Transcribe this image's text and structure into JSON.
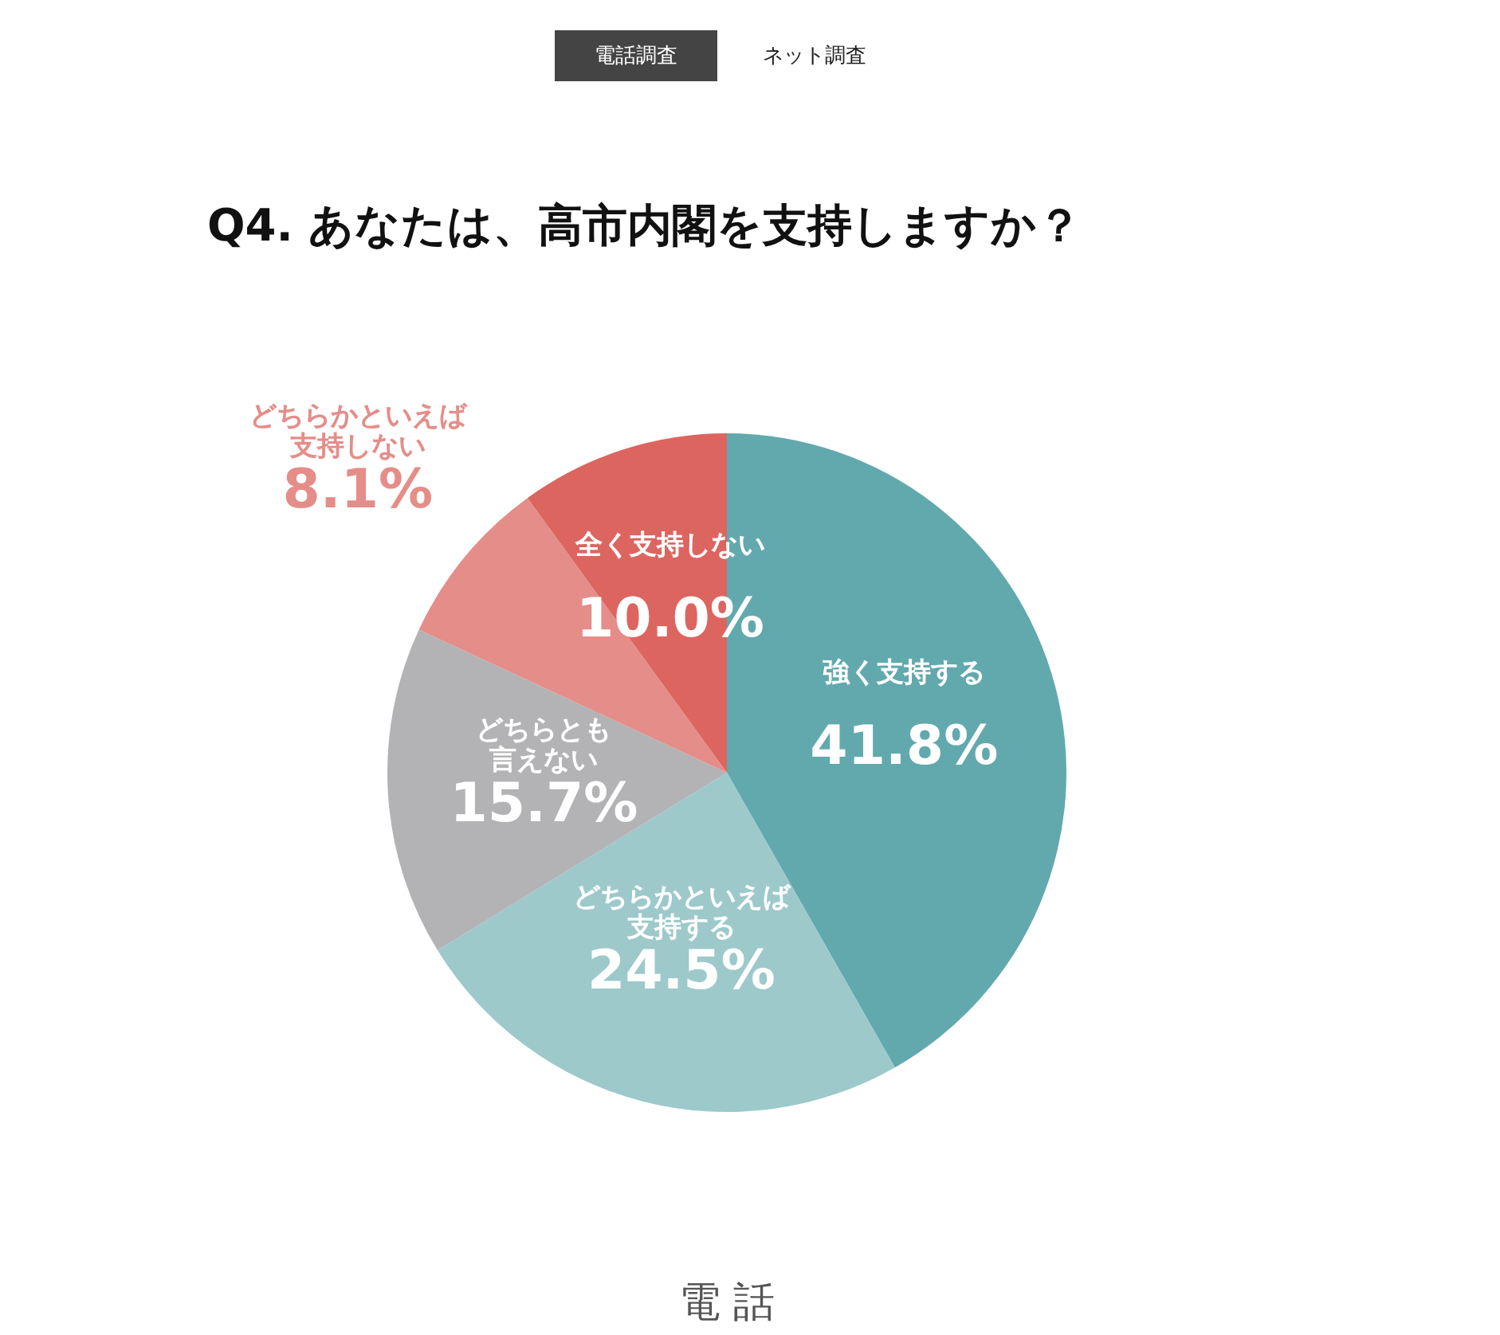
{
  "chart_data": {
    "type": "pie",
    "title": "Q4. あなたは、高市内閣を支持しますか？",
    "categories": [
      "強く支持する",
      "どちらかといえば支持する",
      "どちらとも言えない",
      "どちらかといえば支持しない",
      "全く支持しない"
    ],
    "values": [
      41.8,
      24.5,
      15.7,
      8.1,
      10.0
    ],
    "value_labels": [
      "41.8%",
      "24.5%",
      "15.7%",
      "8.1%",
      "10.0%"
    ],
    "colors": [
      "#62a9ae",
      "#9dc9cb",
      "#b3b3b5",
      "#e58d88",
      "#dc6560"
    ],
    "annotations": [
      "電話調査",
      "ネット調査",
      "電 話"
    ]
  }
}
